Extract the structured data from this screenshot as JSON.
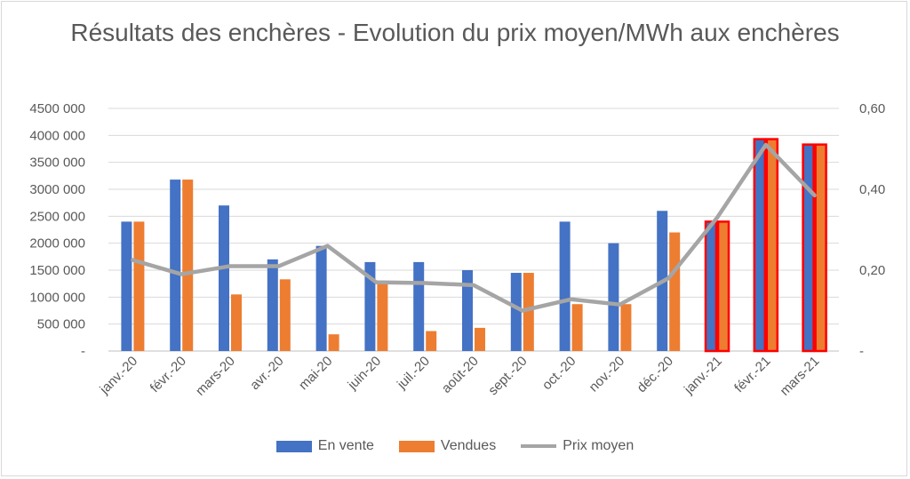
{
  "chart_data": {
    "type": "bar",
    "title": "Résultats des enchères - Evolution du prix moyen/MWh aux enchères",
    "categories": [
      "janv.-20",
      "févr.-20",
      "mars-20",
      "avr.-20",
      "mai-20",
      "juin-20",
      "juil.-20",
      "août-20",
      "sept.-20",
      "oct.-20",
      "nov.-20",
      "déc.-20",
      "janv.-21",
      "févr.-21",
      "mars-21"
    ],
    "series": [
      {
        "name": "En vente",
        "type": "bar",
        "axis": "left",
        "color": "#4472c4",
        "values": [
          2400000,
          3180000,
          2700000,
          1700000,
          1950000,
          1650000,
          1650000,
          1500000,
          1450000,
          2400000,
          2000000,
          2600000,
          2400000,
          3930000,
          3830000
        ]
      },
      {
        "name": "Vendues",
        "type": "bar",
        "axis": "left",
        "color": "#ed7d31",
        "values": [
          2400000,
          3180000,
          1050000,
          1330000,
          310000,
          1270000,
          370000,
          430000,
          1450000,
          870000,
          870000,
          2200000,
          2400000,
          3930000,
          3830000
        ]
      },
      {
        "name": "Prix moyen",
        "type": "line",
        "axis": "right",
        "color": "#a5a5a5",
        "values": [
          0.225,
          0.19,
          0.21,
          0.21,
          0.26,
          0.17,
          0.168,
          0.163,
          0.1,
          0.128,
          0.115,
          0.18,
          0.33,
          0.51,
          0.385
        ]
      }
    ],
    "highlighted_categories": [
      "janv.-21",
      "févr.-21",
      "mars-21"
    ],
    "highlight_color": "#ff0000",
    "y_left": {
      "min": 0,
      "max": 4500000,
      "ticks": [
        0,
        500000,
        1000000,
        1500000,
        2000000,
        2500000,
        3000000,
        3500000,
        4000000,
        4500000
      ],
      "tick_labels": [
        "-",
        "500 000",
        "1000 000",
        "1500 000",
        "2000 000",
        "2500 000",
        "3000 000",
        "3500 000",
        "4000 000",
        "4500 000"
      ]
    },
    "y_right": {
      "min": 0,
      "max": 0.6,
      "ticks": [
        0,
        0.2,
        0.4,
        0.6
      ],
      "tick_labels": [
        "-",
        "0,20",
        "0,40",
        "0,60"
      ]
    },
    "grid": true,
    "legend_position": "bottom"
  }
}
